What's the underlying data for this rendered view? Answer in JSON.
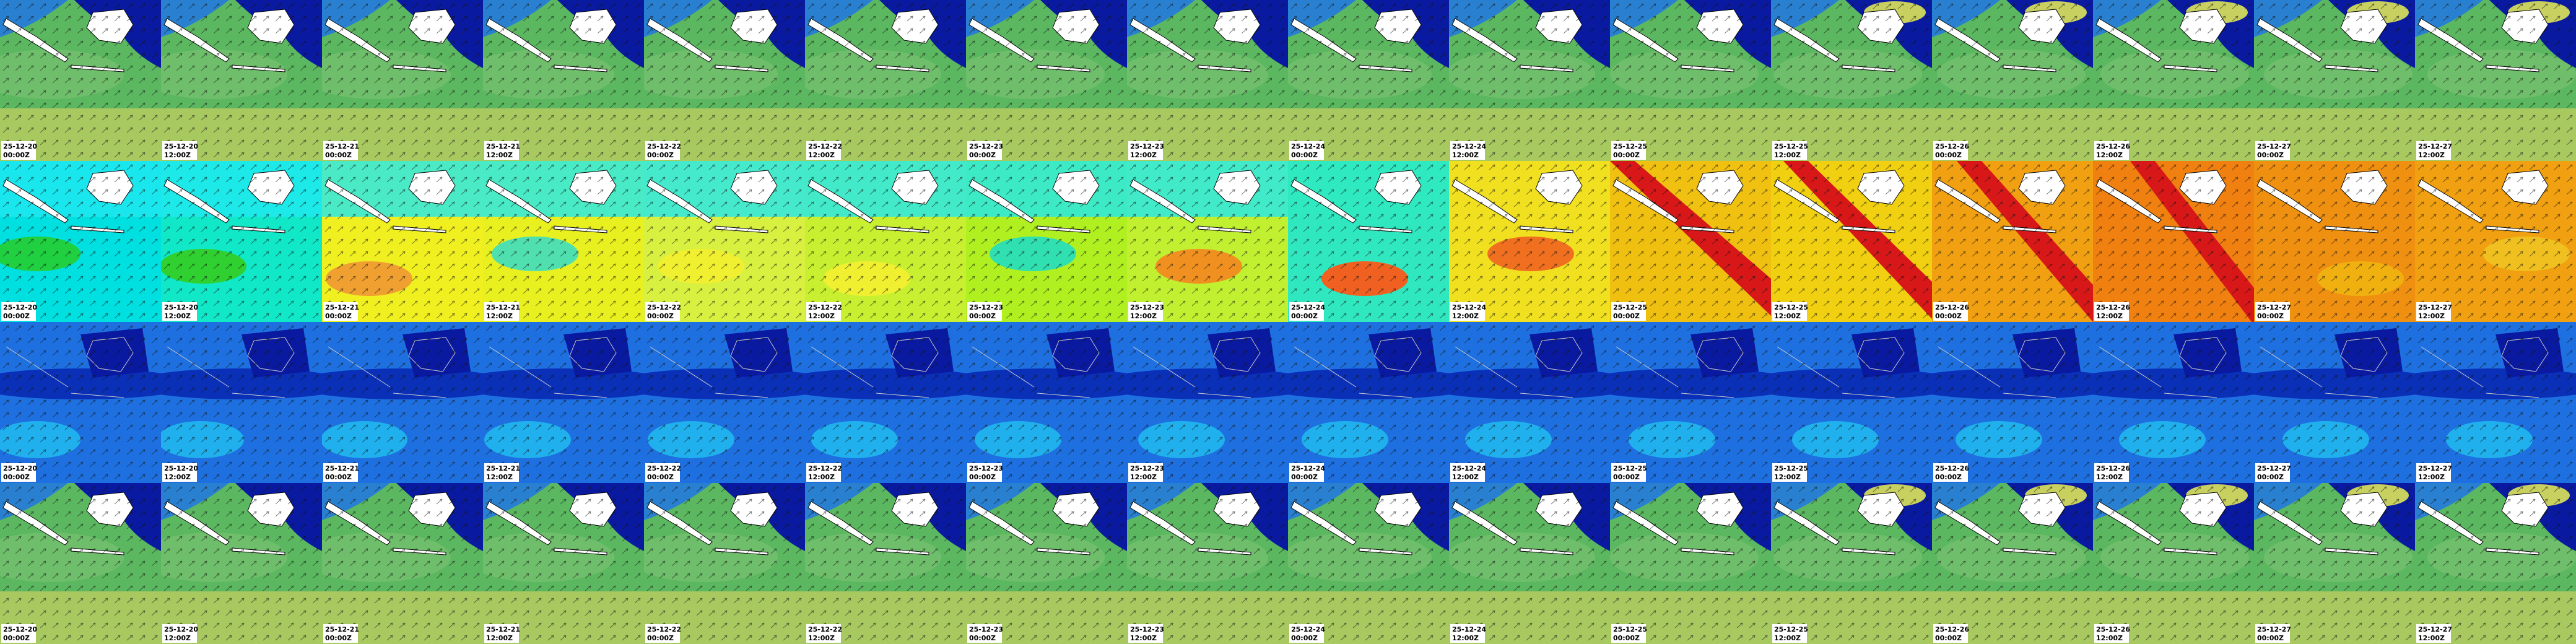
{
  "columns": [
    {
      "date": "25-12-20",
      "time": "00:00Z"
    },
    {
      "date": "25-12-20",
      "time": "12:00Z"
    },
    {
      "date": "25-12-21",
      "time": "00:00Z"
    },
    {
      "date": "25-12-21",
      "time": "12:00Z"
    },
    {
      "date": "25-12-22",
      "time": "00:00Z"
    },
    {
      "date": "25-12-22",
      "time": "12:00Z"
    },
    {
      "date": "25-12-23",
      "time": "00:00Z"
    },
    {
      "date": "25-12-23",
      "time": "12:00Z"
    },
    {
      "date": "25-12-24",
      "time": "00:00Z"
    },
    {
      "date": "25-12-24",
      "time": "12:00Z"
    },
    {
      "date": "25-12-25",
      "time": "00:00Z"
    },
    {
      "date": "25-12-25",
      "time": "12:00Z"
    },
    {
      "date": "25-12-26",
      "time": "00:00Z"
    },
    {
      "date": "25-12-26",
      "time": "12:00Z"
    },
    {
      "date": "25-12-27",
      "time": "00:00Z"
    },
    {
      "date": "25-12-27",
      "time": "12:00Z"
    }
  ]
}
